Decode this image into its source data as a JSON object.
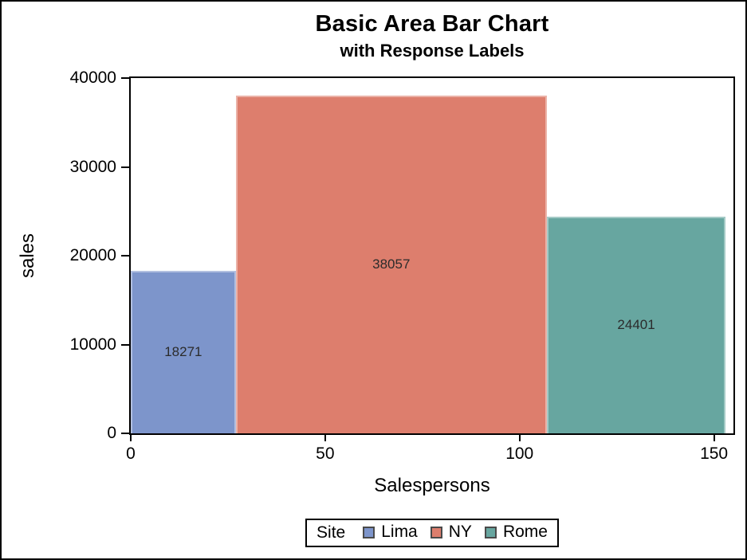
{
  "chart_data": {
    "type": "bar",
    "variant": "area-bar",
    "title": "Basic Area Bar Chart",
    "subtitle": "with Response Labels",
    "xlabel": "Salespersons",
    "ylabel": "sales",
    "xlim": [
      0,
      155
    ],
    "ylim": [
      0,
      40000
    ],
    "x_ticks": [
      0,
      50,
      100,
      150
    ],
    "y_ticks": [
      0,
      10000,
      20000,
      30000,
      40000
    ],
    "grid": false,
    "legend": {
      "title": "Site",
      "position": "bottom"
    },
    "series": [
      {
        "name": "Lima",
        "x_start": 0,
        "x_end": 27,
        "salespersons": 27,
        "sales": 18271,
        "label": "18271",
        "color": "#7D95CB",
        "edge_color": "#B1BFE0"
      },
      {
        "name": "NY",
        "x_start": 27,
        "x_end": 107,
        "salespersons": 80,
        "sales": 38057,
        "label": "38057",
        "color": "#DD7E6D",
        "edge_color": "#EBB2A7"
      },
      {
        "name": "Rome",
        "x_start": 107,
        "x_end": 153,
        "salespersons": 46,
        "sales": 24401,
        "label": "24401",
        "color": "#67A6A0",
        "edge_color": "#A4CAC6"
      }
    ],
    "frame_color": "#000000",
    "text_color": "#000000"
  }
}
